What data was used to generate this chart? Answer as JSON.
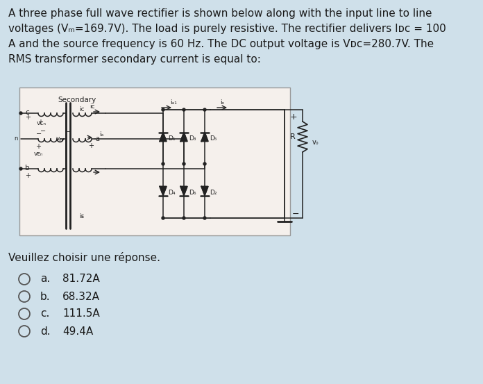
{
  "bg_color": "#cfe0ea",
  "text_color": "#1a1a1a",
  "circuit_bg": "#f5f0ec",
  "title_lines": [
    "A three phase full wave rectifier is shown below along with the input line to line",
    "voltages (Vₘ=169.7V). The load is purely resistive. The rectifier delivers Iᴅᴄ = 100",
    "A and the source frequency is 60 Hz. The DC output voltage is Vᴅᴄ=280.7V. The",
    "RMS transformer secondary current is equal to:"
  ],
  "prompt": "Veuillez choisir une réponse.",
  "options": [
    {
      "label": "a.",
      "text": "81.72A"
    },
    {
      "label": "b.",
      "text": "68.32A"
    },
    {
      "label": "c.",
      "text": "111.5A"
    },
    {
      "label": "d.",
      "text": "49.4A"
    }
  ],
  "font_size": 11.0,
  "circuit_font_size": 7.5
}
